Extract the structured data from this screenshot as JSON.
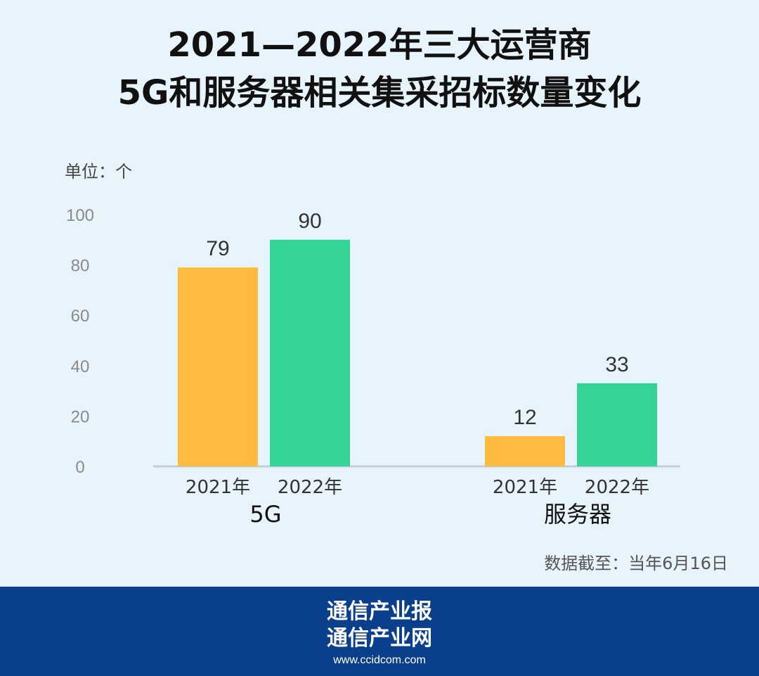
{
  "chart_data": {
    "type": "bar",
    "title": "2021—2022年三大运营商",
    "subtitle": "5G和服务器相关集采招标数量变化",
    "unit_label": "单位：个",
    "groups": [
      "5G",
      "服务器"
    ],
    "series_labels": [
      "2021年",
      "2022年"
    ],
    "values": [
      [
        79,
        90
      ],
      [
        12,
        33
      ]
    ],
    "ylim": [
      0,
      100
    ],
    "yticks": [
      "0",
      "20",
      "40",
      "60",
      "80",
      "100"
    ],
    "grid": false,
    "legend": "none",
    "colors": [
      "#ffbb3f",
      "#33d496"
    ],
    "footnote": "数据截至：当年6月16日"
  },
  "footer": {
    "line1": "通信产业报",
    "line2": "通信产业网",
    "url": "www.ccidcom.com"
  }
}
